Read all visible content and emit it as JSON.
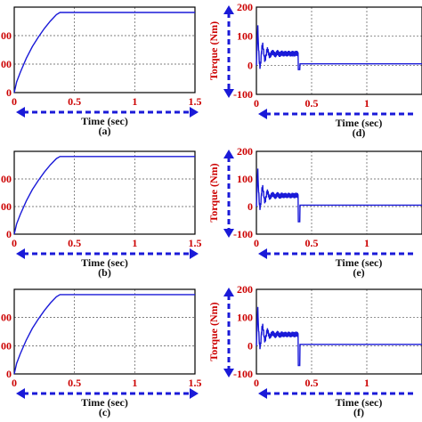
{
  "chart_data": [
    {
      "panel": "(a)",
      "type": "line",
      "xlabel": "Time (sec)",
      "ylabel": "",
      "xlim": [
        0,
        1.5
      ],
      "ylim": [
        0,
        1600
      ],
      "xticks": [
        "0",
        "0.5",
        "1",
        "1.5"
      ],
      "yticks": [
        "0",
        "00",
        "00"
      ],
      "series": [
        {
          "x": [
            0,
            0.02,
            0.05,
            0.1,
            0.15,
            0.2,
            0.25,
            0.3,
            0.35,
            0.38,
            0.5,
            1.0,
            1.5
          ],
          "y": [
            0,
            200,
            380,
            640,
            860,
            1040,
            1200,
            1340,
            1460,
            1500,
            1500,
            1500,
            1500
          ]
        }
      ],
      "grid": true,
      "color": "#1a1ad8"
    },
    {
      "panel": "(b)",
      "type": "line",
      "xlabel": "Time (sec)",
      "ylabel": "",
      "xlim": [
        0,
        1.5
      ],
      "ylim": [
        0,
        1600
      ],
      "xticks": [
        "0",
        "0.5",
        "1",
        "1.5"
      ],
      "yticks": [
        "0",
        "00",
        "00"
      ],
      "series": [
        {
          "x": [
            0,
            0.02,
            0.05,
            0.1,
            0.15,
            0.2,
            0.25,
            0.3,
            0.35,
            0.38,
            0.5,
            1.0,
            1.5
          ],
          "y": [
            0,
            200,
            380,
            640,
            860,
            1040,
            1200,
            1340,
            1460,
            1500,
            1500,
            1500,
            1500
          ]
        }
      ],
      "grid": true,
      "color": "#1a1ad8"
    },
    {
      "panel": "(c)",
      "type": "line",
      "xlabel": "Time (sec)",
      "ylabel": "",
      "xlim": [
        0,
        1.5
      ],
      "ylim": [
        0,
        1600
      ],
      "xticks": [
        "0",
        "0.5",
        "1",
        "1.5"
      ],
      "yticks": [
        "0",
        "00",
        "00"
      ],
      "series": [
        {
          "x": [
            0,
            0.02,
            0.05,
            0.1,
            0.15,
            0.2,
            0.25,
            0.3,
            0.35,
            0.38,
            0.5,
            1.0,
            1.5
          ],
          "y": [
            0,
            200,
            380,
            640,
            860,
            1040,
            1200,
            1340,
            1460,
            1500,
            1500,
            1500,
            1500
          ]
        }
      ],
      "grid": true,
      "color": "#1a1ad8"
    },
    {
      "panel": "(d)",
      "type": "line",
      "xlabel": "Time (sec)",
      "ylabel": "Torque (Nm)",
      "xlim": [
        0,
        1.5
      ],
      "ylim": [
        -100,
        200
      ],
      "xticks": [
        "0",
        "0.5",
        "1"
      ],
      "yticks": [
        "-100",
        "0",
        "100",
        "200"
      ],
      "series": [
        {
          "x": [
            0,
            0.01,
            0.02,
            0.03,
            0.05,
            0.07,
            0.09,
            0.11,
            0.13,
            0.15,
            0.2,
            0.25,
            0.3,
            0.35,
            0.38,
            0.39,
            0.4,
            0.41,
            0.42,
            1.5
          ],
          "y": [
            0,
            120,
            165,
            60,
            130,
            40,
            95,
            45,
            80,
            50,
            65,
            50,
            45,
            40,
            35,
            -15,
            10,
            5,
            5,
            5
          ]
        }
      ],
      "grid": true,
      "color": "#1a1ad8"
    },
    {
      "panel": "(e)",
      "type": "line",
      "xlabel": "Time (sec)",
      "ylabel": "Torque (Nm)",
      "xlim": [
        0,
        1.5
      ],
      "ylim": [
        -100,
        200
      ],
      "xticks": [
        "0",
        "0.5",
        "1"
      ],
      "yticks": [
        "-100",
        "0",
        "100",
        "200"
      ],
      "series": [
        {
          "x": [
            0,
            0.01,
            0.02,
            0.03,
            0.05,
            0.07,
            0.09,
            0.11,
            0.13,
            0.15,
            0.2,
            0.25,
            0.3,
            0.35,
            0.38,
            0.39,
            0.4,
            0.41,
            0.42,
            1.5
          ],
          "y": [
            0,
            120,
            165,
            60,
            130,
            40,
            95,
            45,
            80,
            50,
            65,
            50,
            45,
            40,
            35,
            -55,
            5,
            5,
            5,
            5
          ]
        }
      ],
      "grid": true,
      "color": "#1a1ad8"
    },
    {
      "panel": "(f)",
      "type": "line",
      "xlabel": "Time (sec)",
      "ylabel": "Torque (Nm)",
      "xlim": [
        0,
        1.5
      ],
      "ylim": [
        -100,
        200
      ],
      "xticks": [
        "0",
        "0.5",
        "1"
      ],
      "yticks": [
        "-100",
        "0",
        "100",
        "200"
      ],
      "series": [
        {
          "x": [
            0,
            0.01,
            0.02,
            0.03,
            0.05,
            0.07,
            0.09,
            0.11,
            0.13,
            0.15,
            0.2,
            0.25,
            0.3,
            0.35,
            0.38,
            0.39,
            0.4,
            0.41,
            0.42,
            1.5
          ],
          "y": [
            0,
            120,
            165,
            60,
            130,
            40,
            95,
            45,
            80,
            50,
            65,
            50,
            45,
            40,
            35,
            -70,
            5,
            5,
            5,
            5
          ]
        }
      ],
      "grid": true,
      "color": "#1a1ad8"
    }
  ]
}
